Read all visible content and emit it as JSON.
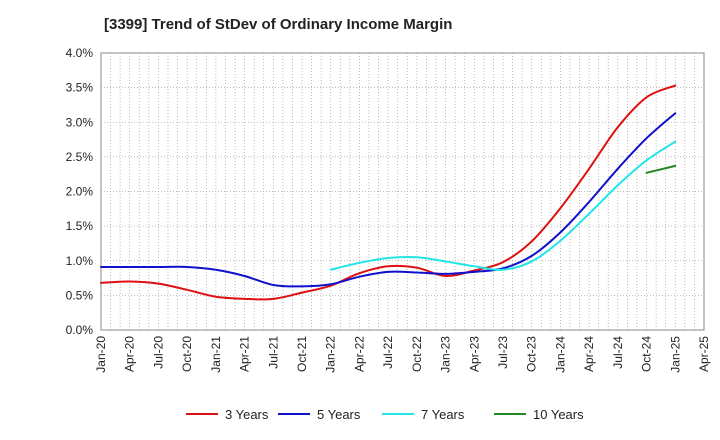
{
  "chart_data": {
    "type": "line",
    "title": "[3399]  Trend of StDev of Ordinary Income Margin",
    "xlabel": "",
    "ylabel": "",
    "x_tick_labels": [
      "Jan-20",
      "Apr-20",
      "Jul-20",
      "Oct-20",
      "Jan-21",
      "Apr-21",
      "Jul-21",
      "Oct-21",
      "Jan-22",
      "Apr-22",
      "Jul-22",
      "Oct-22",
      "Jan-23",
      "Apr-23",
      "Jul-23",
      "Oct-23",
      "Jan-24",
      "Apr-24",
      "Jul-24",
      "Oct-24",
      "Jan-25",
      "Apr-25"
    ],
    "y_tick_labels": [
      "0.0%",
      "0.5%",
      "1.0%",
      "1.5%",
      "2.0%",
      "2.5%",
      "3.0%",
      "3.5%",
      "4.0%"
    ],
    "ylim": [
      0,
      4.0
    ],
    "grid": true,
    "legend_position": "bottom",
    "series": [
      {
        "name": "3 Years",
        "color": "#dd1111",
        "points": [
          [
            "Jan-20",
            0.68
          ],
          [
            "Apr-20",
            0.7
          ],
          [
            "Jul-20",
            0.67
          ],
          [
            "Oct-20",
            0.58
          ],
          [
            "Jan-21",
            0.48
          ],
          [
            "Apr-21",
            0.45
          ],
          [
            "Jul-21",
            0.45
          ],
          [
            "Oct-21",
            0.54
          ],
          [
            "Jan-22",
            0.64
          ],
          [
            "Apr-22",
            0.82
          ],
          [
            "Jul-22",
            0.92
          ],
          [
            "Oct-22",
            0.9
          ],
          [
            "Jan-23",
            0.78
          ],
          [
            "Apr-23",
            0.86
          ],
          [
            "Jul-23",
            0.98
          ],
          [
            "Oct-23",
            1.28
          ],
          [
            "Jan-24",
            1.76
          ],
          [
            "Apr-24",
            2.33
          ],
          [
            "Jul-24",
            2.93
          ],
          [
            "Oct-24",
            3.36
          ],
          [
            "Jan-25",
            3.53
          ]
        ]
      },
      {
        "name": "5 Years",
        "color": "#1111cc",
        "points": [
          [
            "Jan-20",
            0.91
          ],
          [
            "Apr-20",
            0.91
          ],
          [
            "Jul-20",
            0.91
          ],
          [
            "Oct-20",
            0.91
          ],
          [
            "Jan-21",
            0.87
          ],
          [
            "Apr-21",
            0.78
          ],
          [
            "Jul-21",
            0.65
          ],
          [
            "Oct-21",
            0.63
          ],
          [
            "Jan-22",
            0.66
          ],
          [
            "Apr-22",
            0.77
          ],
          [
            "Jul-22",
            0.84
          ],
          [
            "Oct-22",
            0.83
          ],
          [
            "Jan-23",
            0.81
          ],
          [
            "Apr-23",
            0.84
          ],
          [
            "Jul-23",
            0.89
          ],
          [
            "Oct-23",
            1.07
          ],
          [
            "Jan-24",
            1.41
          ],
          [
            "Apr-24",
            1.85
          ],
          [
            "Jul-24",
            2.33
          ],
          [
            "Oct-24",
            2.77
          ],
          [
            "Jan-25",
            3.13
          ]
        ]
      },
      {
        "name": "7 Years",
        "color": "#22e6e6",
        "points": [
          [
            "Jan-22",
            0.87
          ],
          [
            "Apr-22",
            0.97
          ],
          [
            "Jul-22",
            1.04
          ],
          [
            "Oct-22",
            1.05
          ],
          [
            "Jan-23",
            0.99
          ],
          [
            "Apr-23",
            0.92
          ],
          [
            "Jul-23",
            0.87
          ],
          [
            "Oct-23",
            0.99
          ],
          [
            "Jan-24",
            1.29
          ],
          [
            "Apr-24",
            1.68
          ],
          [
            "Jul-24",
            2.09
          ],
          [
            "Oct-24",
            2.45
          ],
          [
            "Jan-25",
            2.72
          ]
        ]
      },
      {
        "name": "10 Years",
        "color": "#228822",
        "points": [
          [
            "Oct-24",
            2.27
          ],
          [
            "Jan-25",
            2.37
          ]
        ]
      }
    ]
  }
}
